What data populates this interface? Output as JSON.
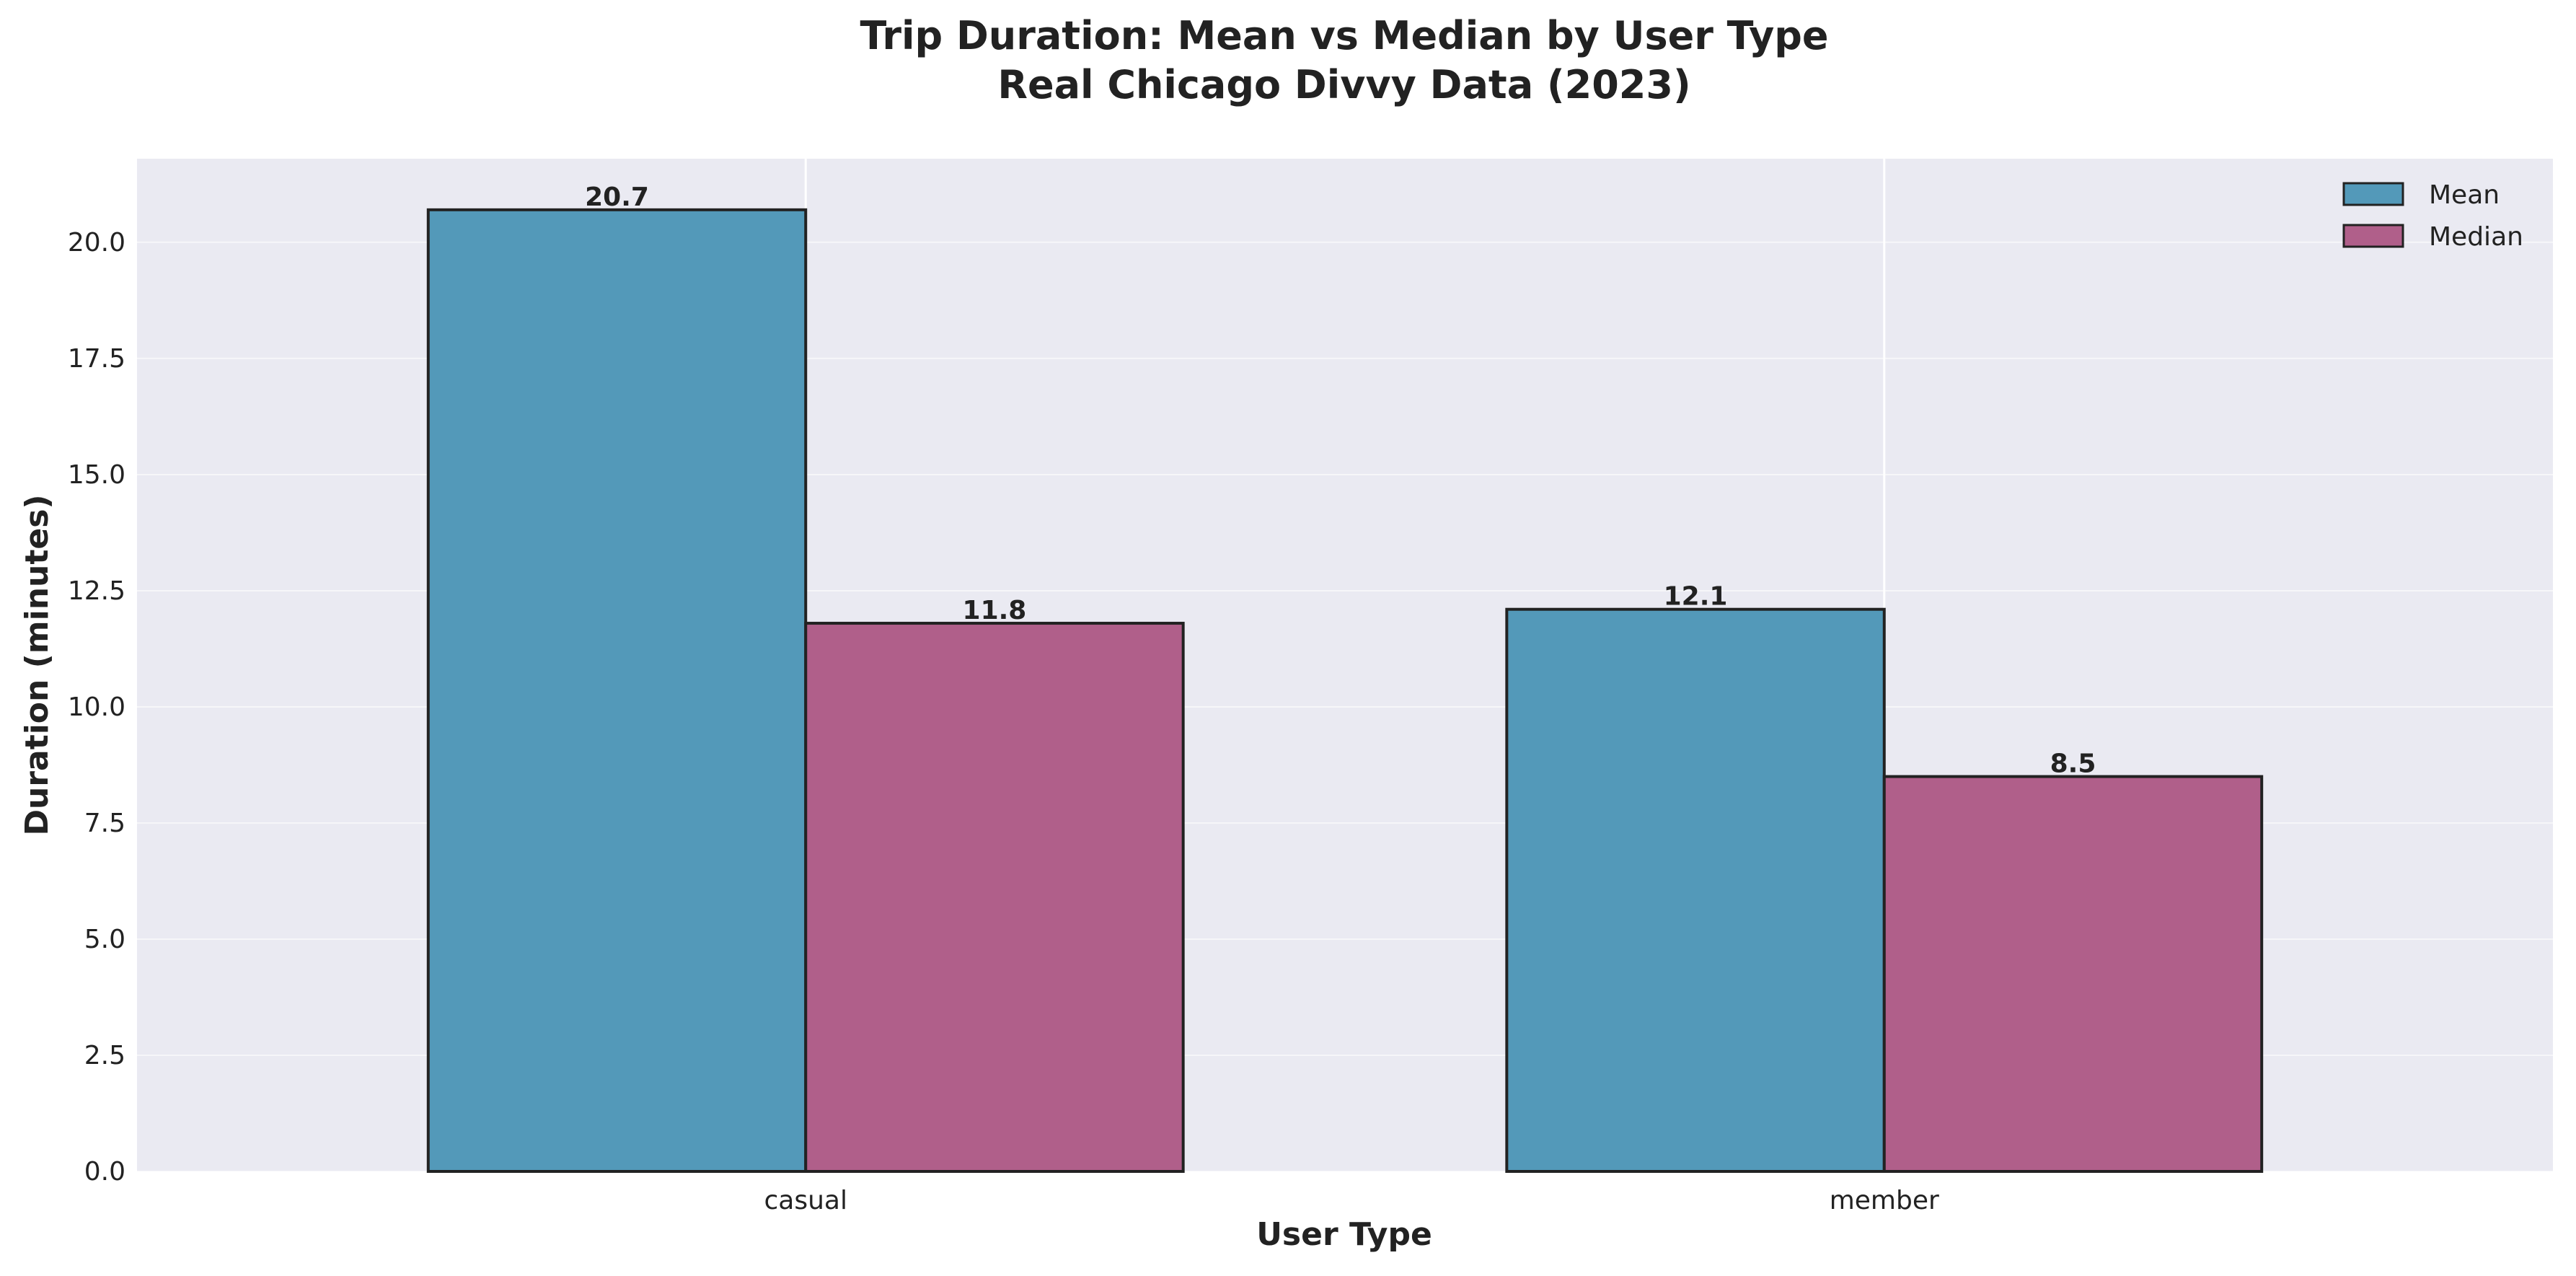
{
  "chart_data": {
    "type": "bar",
    "title": "Trip Duration: Mean vs Median by User Type",
    "subtitle": "Real Chicago Divvy Data (2023)",
    "xlabel": "User Type",
    "ylabel": "Duration (minutes)",
    "categories": [
      "casual",
      "member"
    ],
    "series": [
      {
        "name": "Mean",
        "values": [
          20.7,
          12.1
        ],
        "color": "#5399b9",
        "labels": [
          "20.7",
          "12.1"
        ]
      },
      {
        "name": "Median",
        "values": [
          11.8,
          8.5
        ],
        "color": "#b05f8a",
        "labels": [
          "11.8",
          "8.5"
        ]
      }
    ],
    "ylim": [
      0,
      21.8
    ],
    "yticks": [
      "0.0",
      "2.5",
      "5.0",
      "7.5",
      "10.0",
      "12.5",
      "15.0",
      "17.5",
      "20.0"
    ],
    "grid": true,
    "legend_position": "top-right",
    "background_color": "#eaeaf2",
    "gridline_color": "#ffffff",
    "bar_edge_color": "#222222"
  }
}
